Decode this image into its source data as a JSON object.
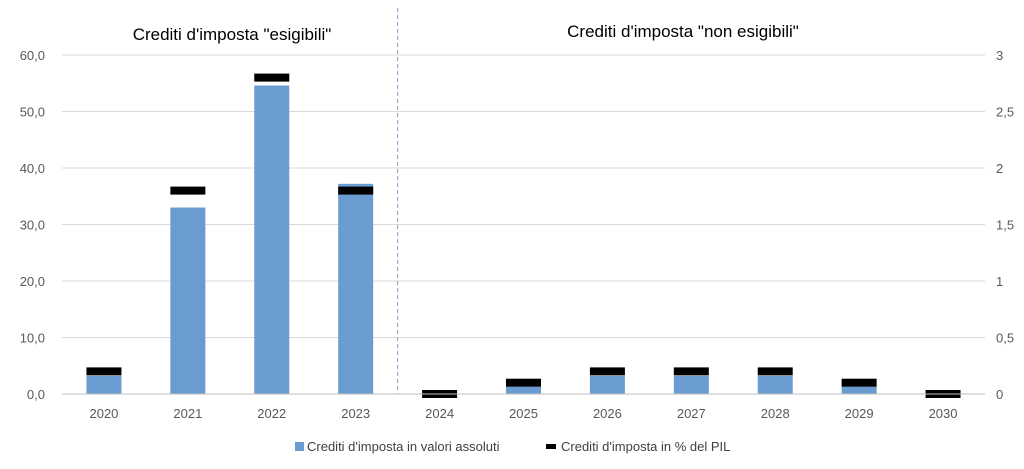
{
  "chart_data": {
    "type": "bar",
    "categories": [
      "2020",
      "2021",
      "2022",
      "2023",
      "2024",
      "2025",
      "2026",
      "2027",
      "2028",
      "2029",
      "2030"
    ],
    "series": [
      {
        "name": "Crediti d'imposta in valori assoluti",
        "type": "bar",
        "axis": "left",
        "color": "#6a9bd1",
        "values": [
          3.2,
          33.0,
          54.6,
          37.2,
          0.0,
          1.3,
          3.2,
          3.2,
          3.2,
          1.3,
          0.0
        ]
      },
      {
        "name": "Crediti d'imposta in % del PIL",
        "type": "marker",
        "axis": "right",
        "color": "#000000",
        "values": [
          0.2,
          1.8,
          2.8,
          1.8,
          0.0,
          0.1,
          0.2,
          0.2,
          0.2,
          0.1,
          0.0
        ]
      }
    ],
    "section_titles": [
      "Crediti d'imposta \"esigibili\"",
      "Crediti d'imposta \"non esigibili\""
    ],
    "divider_after_category": "2023",
    "y_left": {
      "ylim": [
        0,
        60
      ],
      "ticks": [
        "0,0",
        "10,0",
        "20,0",
        "30,0",
        "40,0",
        "50,0",
        "60,0"
      ]
    },
    "y_right": {
      "ylim": [
        0,
        3
      ],
      "ticks": [
        "0",
        "0,5",
        "1",
        "1,5",
        "2",
        "2,5",
        "3"
      ]
    },
    "grid": true,
    "legend_position": "bottom",
    "colors": {
      "grid": "#d9d9d9",
      "divider": "#7fa7cc",
      "axis": "#bfbfbf"
    }
  }
}
